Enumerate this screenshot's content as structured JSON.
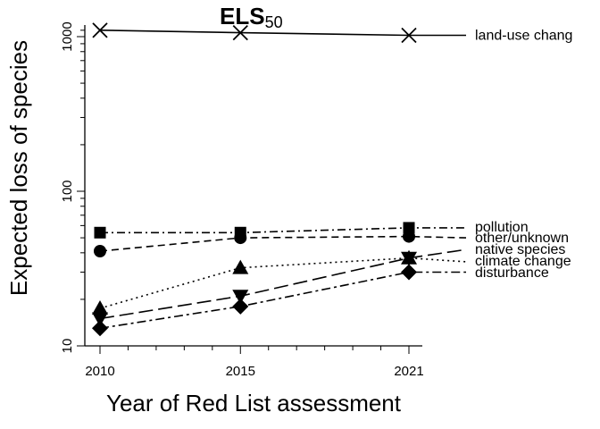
{
  "chart_data": {
    "type": "line",
    "title": "ELS",
    "title_subscript": "50",
    "xlabel": "Year of Red List assessment",
    "ylabel": "Expected loss of species",
    "x": [
      2010,
      2015,
      2021
    ],
    "x_ticks": [
      "2010",
      "2015",
      "2021"
    ],
    "xlim": [
      2009.5,
      2021.8
    ],
    "y_scale": "log",
    "ylim": [
      10,
      1150
    ],
    "y_ticks": [
      "10",
      "100",
      "1000"
    ],
    "grid": false,
    "legend": "direct labels at right end of each line",
    "series": [
      {
        "name": "land-use chang",
        "values": [
          1100,
          1060,
          1020
        ],
        "end_value": 1020,
        "marker": "x",
        "dash": "solid"
      },
      {
        "name": "pollution",
        "values": [
          54,
          54,
          58
        ],
        "end_value": 58,
        "marker": "square",
        "dash": "dashdot"
      },
      {
        "name": "other/unknown",
        "values": [
          41,
          50,
          51
        ],
        "end_value": 50,
        "marker": "circle",
        "dash": "dashed"
      },
      {
        "name": "native species",
        "values": [
          15,
          21,
          37
        ],
        "end_value": 42,
        "marker": "triangle-down",
        "dash": "longdash"
      },
      {
        "name": "climate change",
        "values": [
          17.5,
          32,
          37
        ],
        "end_value": 35,
        "marker": "triangle-up",
        "dash": "dotted"
      },
      {
        "name": "disturbance",
        "values": [
          13,
          18,
          30
        ],
        "end_value": 30,
        "marker": "diamond",
        "dash": "twodash"
      }
    ]
  }
}
